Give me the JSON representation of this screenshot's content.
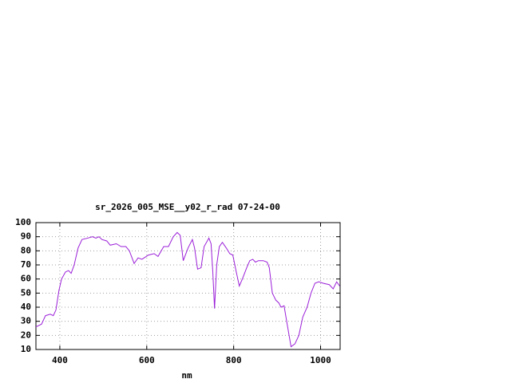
{
  "chart_data": {
    "type": "line",
    "title": "sr_2026_005_MSE__y02_r_rad 07-24-00",
    "x_label": "nm",
    "x": [
      345,
      358,
      367,
      378,
      385,
      391,
      398,
      404,
      413,
      420,
      426,
      433,
      442,
      451,
      464,
      475,
      483,
      490,
      497,
      508,
      516,
      530,
      541,
      552,
      560,
      571,
      580,
      589,
      604,
      617,
      626,
      639,
      650,
      661,
      670,
      677,
      684,
      695,
      705,
      710,
      717,
      725,
      732,
      743,
      748,
      752,
      756,
      761,
      767,
      774,
      783,
      791,
      798,
      806,
      813,
      820,
      830,
      837,
      844,
      850,
      857,
      868,
      877,
      882,
      889,
      897,
      904,
      909,
      916,
      922,
      932,
      941,
      950,
      959,
      969,
      978,
      987,
      996,
      1006,
      1020,
      1029,
      1037,
      1044
    ],
    "series": [
      {
        "color": "#9b1fd8",
        "values": [
          26,
          28,
          34,
          35,
          34,
          38,
          52,
          60,
          65,
          66,
          64,
          70,
          82,
          88,
          89,
          90,
          89,
          90,
          88,
          87,
          84,
          85,
          83,
          83,
          80,
          71,
          75,
          74,
          77,
          78,
          76,
          83,
          83,
          90,
          93,
          91,
          73,
          82,
          88,
          82,
          67,
          68,
          83,
          89,
          85,
          65,
          39,
          70,
          83,
          86,
          82,
          78,
          77,
          65,
          55,
          60,
          68,
          73,
          74,
          72,
          73,
          73,
          72,
          68,
          50,
          45,
          43,
          40,
          41,
          30,
          12,
          14,
          20,
          33,
          40,
          50,
          57,
          58,
          57,
          56,
          53,
          58,
          55
        ]
      }
    ],
    "xlim": [
      345,
      1045
    ],
    "xticks": [
      400,
      600,
      800,
      1000
    ],
    "ylim": [
      10,
      100
    ],
    "yticks": [
      10,
      20,
      30,
      40,
      50,
      60,
      70,
      80,
      90,
      100
    ],
    "grid": true
  }
}
